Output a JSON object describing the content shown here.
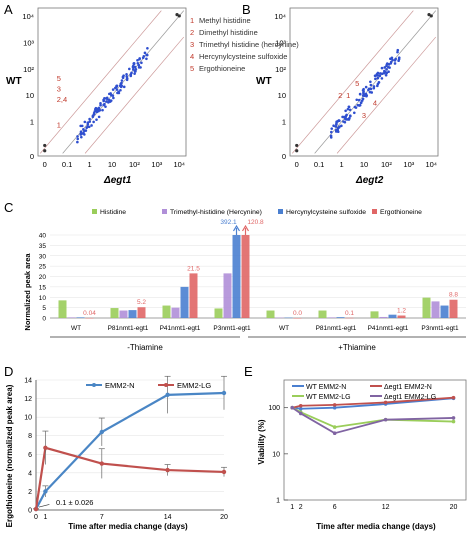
{
  "panels": {
    "A": "A",
    "B": "B",
    "C": "C",
    "D": "D",
    "E": "E"
  },
  "colors": {
    "histidine": "#9ACD5A",
    "trimethyl": "#B08FD8",
    "hercynylcysteine": "#4A7FD0",
    "ergothioneine": "#E06666",
    "scatter": "#2F4FCF",
    "emm2n": "#4A86C5",
    "emm2lg": "#C0504D",
    "wt_emm2n": "#4A7FD0",
    "degt1_emm2n": "#C0504D",
    "wt_emm2lg": "#9ACD5A",
    "degt1_emm2lg": "#8064A2"
  },
  "chart_data": [
    {
      "panel": "A",
      "type": "scatter",
      "xlabel": "Δegt1",
      "ylabel": "WT",
      "x_ticks": [
        "0",
        "0.1",
        "1",
        "10",
        "10²",
        "10³",
        "10⁴"
      ],
      "y_ticks": [
        "0",
        "1",
        "10",
        "10²",
        "10³",
        "10⁴"
      ],
      "log_scale": true,
      "legend": [
        {
          "num": "1",
          "label": "Methyl histidine"
        },
        {
          "num": "2",
          "label": "Dimethyl histidine"
        },
        {
          "num": "3",
          "label": "Trimethyl histidine (hercynine)"
        },
        {
          "num": "4",
          "label": "Hercynylcysteine sulfoxide"
        },
        {
          "num": "5",
          "label": "Ergothioneine"
        }
      ],
      "annotations": [
        {
          "text": "5",
          "x": 0,
          "y": 35
        },
        {
          "text": "3",
          "x": 0,
          "y": 14
        },
        {
          "text": "2,4",
          "x": 0,
          "y": 5.5
        },
        {
          "text": "1",
          "x": 0,
          "y": 0.6
        }
      ]
    },
    {
      "panel": "B",
      "type": "scatter",
      "xlabel": "Δegt2",
      "ylabel": "WT",
      "x_ticks": [
        "0",
        "0.1",
        "1",
        "10",
        "10²",
        "10³",
        "10⁴"
      ],
      "y_ticks": [
        "0",
        "1",
        "10",
        "10²",
        "10³",
        "10⁴"
      ],
      "log_scale": true,
      "annotations": [
        {
          "text": "5",
          "x": 4,
          "y": 22
        },
        {
          "text": "2",
          "x": 0.7,
          "y": 8
        },
        {
          "text": "1",
          "x": 1.6,
          "y": 8
        },
        {
          "text": "4",
          "x": 25,
          "y": 4
        },
        {
          "text": "3",
          "x": 8,
          "y": 1.4
        }
      ]
    },
    {
      "panel": "C",
      "type": "bar",
      "ylabel": "Normalized peak area",
      "ylim": [
        0,
        40
      ],
      "y_ticks": [
        "0",
        "5",
        "10",
        "15",
        "20",
        "25",
        "30",
        "35",
        "40"
      ],
      "legend_position": "top",
      "series_names": [
        "Histidine",
        "Trimethyl-histidine (Hercynine)",
        "Hercynylcysteine sulfoxide",
        "Ergothioneine"
      ],
      "categories": [
        "WT",
        "P81nmt1-egt1",
        "P41nmt1-egt1",
        "P3nmt1-egt1",
        "WT",
        "P81nmt1-egt1",
        "P41nmt1-egt1",
        "P3nmt1-egt1"
      ],
      "group_labels": [
        "-Thiamine",
        "+Thiamine"
      ],
      "series": [
        {
          "values": [
            8.5,
            4.8,
            6.0,
            4.6,
            3.6,
            3.6,
            3.2,
            9.8
          ]
        },
        {
          "values": [
            0.3,
            3.6,
            5.0,
            21.5,
            0.2,
            0.3,
            0.5,
            8.0
          ]
        },
        {
          "values": [
            0.3,
            3.8,
            15.0,
            40,
            0.2,
            0.4,
            1.6,
            6.0
          ]
        },
        {
          "values": [
            0.04,
            5.2,
            21.5,
            40,
            0.0,
            0.1,
            1.2,
            8.8
          ]
        }
      ],
      "value_labels": [
        "0.04",
        "5.2",
        "21.5",
        "",
        "0.0",
        "0.1",
        "1.2",
        "8.8"
      ],
      "off_scale_labels": [
        "392.1",
        "120.8"
      ]
    },
    {
      "panel": "D",
      "type": "line",
      "xlabel": "Time after media change (days)",
      "ylabel": "Ergothioneine (normalized peak area)",
      "ylim": [
        0,
        14
      ],
      "y_ticks": [
        "0",
        "2",
        "4",
        "6",
        "8",
        "10",
        "12",
        "14"
      ],
      "x_ticks": [
        "0",
        "1",
        "7",
        "14",
        "20"
      ],
      "annotation": "0.1 ± 0.026",
      "series": [
        {
          "name": "EMM2-N",
          "x": [
            0,
            1,
            7,
            14,
            20
          ],
          "values": [
            0.1,
            2.0,
            8.4,
            12.4,
            12.6
          ],
          "err": [
            0.03,
            0.6,
            1.5,
            2.0,
            1.8
          ]
        },
        {
          "name": "EMM2-LG",
          "x": [
            0,
            1,
            7,
            14,
            20
          ],
          "values": [
            0.1,
            6.7,
            5.0,
            4.3,
            4.1
          ],
          "err": [
            0.03,
            1.8,
            1.6,
            0.6,
            0.5
          ]
        }
      ]
    },
    {
      "panel": "E",
      "type": "line",
      "xlabel": "Time after media change (days)",
      "ylabel": "Viability (%)",
      "log_scale": true,
      "y_ticks": [
        "1",
        "10",
        "100"
      ],
      "x_ticks": [
        "1",
        "2",
        "6",
        "12",
        "20"
      ],
      "series": [
        {
          "name": "WT EMM2-N",
          "x": [
            1,
            2,
            6,
            12,
            20
          ],
          "values": [
            100,
            95,
            100,
            120,
            160
          ]
        },
        {
          "name": "Δegt1 EMM2-N",
          "x": [
            1,
            2,
            6,
            12,
            20
          ],
          "values": [
            100,
            110,
            115,
            130,
            165
          ]
        },
        {
          "name": "WT EMM2-LG",
          "x": [
            1,
            2,
            6,
            12,
            20
          ],
          "values": [
            100,
            80,
            38,
            55,
            50
          ]
        },
        {
          "name": "Δegt1 EMM2-LG",
          "x": [
            1,
            2,
            6,
            12,
            20
          ],
          "values": [
            100,
            75,
            28,
            55,
            60
          ]
        }
      ]
    }
  ]
}
